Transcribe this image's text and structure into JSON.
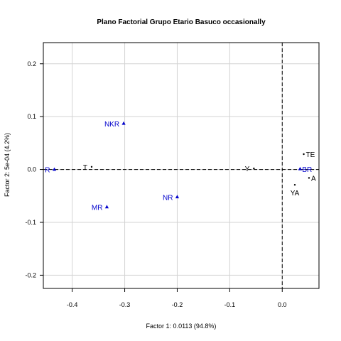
{
  "chart_data": {
    "type": "scatter",
    "title": "Plano Factorial Grupo Etario Basuco occasionally",
    "xlabel": "Factor 1: 0.0113 (94.8%)",
    "ylabel": "Factor 2: 5e-04 (4.2%)",
    "xlim": [
      -0.455,
      0.07
    ],
    "ylim": [
      -0.225,
      0.24
    ],
    "x_ticks": [
      -0.4,
      -0.3,
      -0.2,
      -0.1,
      0.0
    ],
    "x_tick_labels": [
      "-0.4",
      "-0.3",
      "-0.2",
      "-0.1",
      "0.0"
    ],
    "y_ticks": [
      -0.2,
      -0.1,
      0.0,
      0.1,
      0.2
    ],
    "y_tick_labels": [
      "-0.2",
      "-0.1",
      "0.0",
      "0.1",
      "0.2"
    ],
    "grid": true,
    "reference_lines": {
      "x": 0,
      "y": 0,
      "style": "dashed"
    },
    "series": [
      {
        "name": "",
        "marker": "triangle",
        "color": "#0000cc",
        "points": [
          {
            "label": "NKR",
            "x": -0.302,
            "y": 0.087,
            "label_side": "left"
          },
          {
            "label": "R",
            "x": -0.434,
            "y": 0.0,
            "label_side": "left"
          },
          {
            "label": "MR",
            "x": -0.334,
            "y": -0.071,
            "label_side": "left"
          },
          {
            "label": "NR",
            "x": -0.2,
            "y": -0.052,
            "label_side": "left"
          },
          {
            "label": "BR",
            "x": 0.034,
            "y": 0.001,
            "label_side": "right"
          }
        ]
      },
      {
        "name": "",
        "marker": "dot",
        "color": "#000000",
        "points": [
          {
            "label": "T",
            "x": -0.363,
            "y": 0.005,
            "label_side": "left"
          },
          {
            "label": "Y",
            "x": -0.054,
            "y": 0.002,
            "label_side": "left"
          },
          {
            "label": "TE",
            "x": 0.041,
            "y": 0.029,
            "label_side": "right"
          },
          {
            "label": "A",
            "x": 0.051,
            "y": -0.016,
            "label_side": "right"
          },
          {
            "label": "YA",
            "x": 0.024,
            "y": -0.029,
            "label_side": "below"
          }
        ]
      }
    ]
  }
}
